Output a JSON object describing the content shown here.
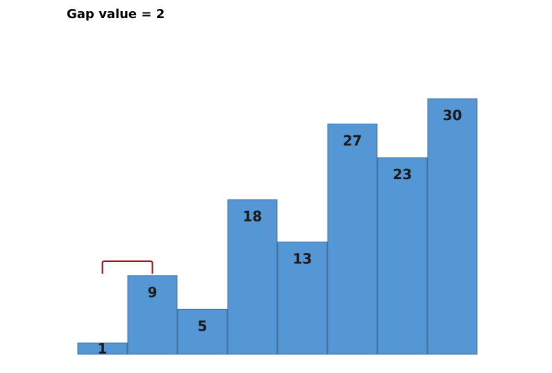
{
  "title": "Gap value = 2",
  "bar_color": "#5596d4",
  "bar_border_color": "#3f6f9f",
  "bracket_color": "#a0141e",
  "bars": [
    1,
    9,
    5,
    18,
    13,
    27,
    23,
    30
  ],
  "bracket": {
    "from_index": 0,
    "to_index": 1
  }
}
